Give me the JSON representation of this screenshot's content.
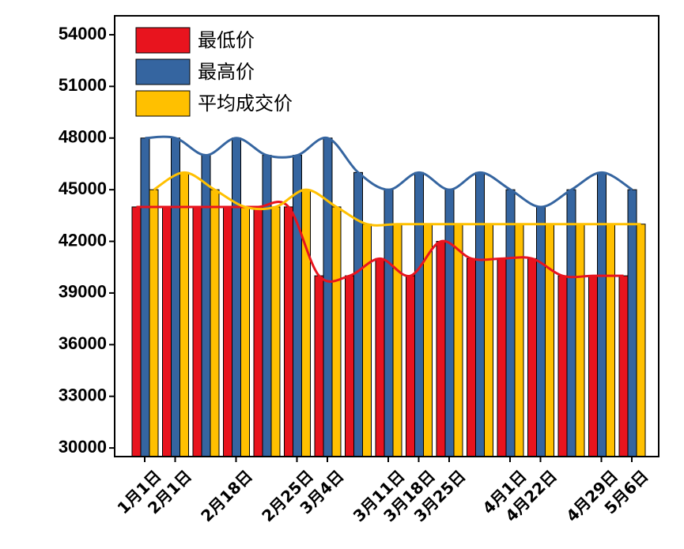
{
  "chart_data": {
    "type": "bar",
    "categories": [
      "1月1日",
      "2月1日",
      null,
      "2月18日",
      null,
      "2月25日",
      "3月4日",
      null,
      "3月11日",
      "3月18日",
      "3月25日",
      null,
      "4月1日",
      "4月22日",
      null,
      "4月29日",
      "5月6日"
    ],
    "series": [
      {
        "name": "最低价",
        "color": "#e8141e",
        "values": [
          44000,
          44000,
          44000,
          44000,
          44000,
          44000,
          40000,
          40000,
          41000,
          40000,
          42000,
          41000,
          41000,
          41000,
          40000,
          40000,
          40000
        ]
      },
      {
        "name": "最高价",
        "color": "#3565a0",
        "values": [
          48000,
          48000,
          47000,
          48000,
          47000,
          47000,
          48000,
          46000,
          45000,
          46000,
          45000,
          46000,
          45000,
          44000,
          45000,
          46000,
          45000
        ]
      },
      {
        "name": "平均成交价",
        "color": "#ffc000",
        "values": [
          45000,
          46000,
          45000,
          44000,
          44000,
          45000,
          44000,
          43000,
          43000,
          43000,
          43000,
          43000,
          43000,
          43000,
          43000,
          43000,
          43000
        ]
      }
    ],
    "ylim": [
      29500,
      55100
    ],
    "yticks": [
      30000,
      33000,
      36000,
      39000,
      42000,
      45000,
      48000,
      51000,
      54000
    ],
    "legend": "upper left"
  }
}
